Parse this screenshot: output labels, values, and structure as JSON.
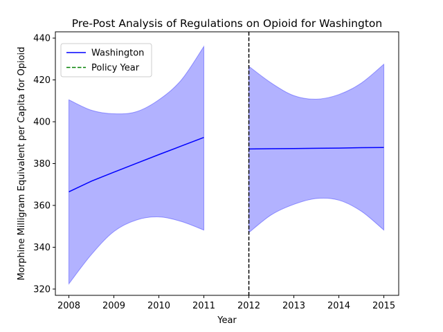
{
  "chart_data": {
    "type": "line",
    "title": "Pre-Post Analysis of Regulations on Opioid for Washington",
    "xlabel": "Year",
    "ylabel": "Morphine Milligram Equivalent per Capita for Opioid",
    "xlim": [
      2007.7,
      2015.33
    ],
    "ylim": [
      317,
      443
    ],
    "x_ticks": [
      2008,
      2009,
      2010,
      2011,
      2012,
      2013,
      2014,
      2015
    ],
    "y_ticks": [
      320,
      340,
      360,
      380,
      400,
      420,
      440
    ],
    "grid": false,
    "legend_position": "top-left",
    "policy_year": 2012,
    "series": [
      {
        "name": "Washington",
        "color": "#0000ff",
        "band_color": "#0000ff",
        "segments": [
          {
            "x": [
              2008,
              2008.5,
              2009,
              2009.5,
              2010,
              2010.5,
              2011
            ],
            "y": [
              366.5,
              371.6,
              375.9,
              380.1,
              384.3,
              388.4,
              392.5
            ],
            "lower": [
              322.5,
              336.5,
              347.5,
              353.0,
              354.5,
              352.3,
              348.2
            ],
            "upper": [
              410.5,
              405.5,
              403.8,
              404.8,
              410.5,
              420.0,
              436.0
            ]
          },
          {
            "x": [
              2012,
              2012.5,
              2013,
              2013.5,
              2014,
              2014.5,
              2015
            ],
            "y": [
              387.0,
              387.1,
              387.2,
              387.3,
              387.4,
              387.6,
              387.7
            ],
            "lower": [
              347.0,
              355.5,
              360.5,
              363.3,
              362.5,
              357.2,
              348.2
            ],
            "upper": [
              426.5,
              418.5,
              412.5,
              410.8,
              413.0,
              418.5,
              427.5
            ]
          }
        ]
      }
    ],
    "legend": [
      {
        "label": "Washington",
        "color": "#0000ff",
        "style": "solid"
      },
      {
        "label": "Policy Year",
        "color": "#008000",
        "style": "dashed"
      }
    ],
    "policy_line_color": "#000000"
  }
}
